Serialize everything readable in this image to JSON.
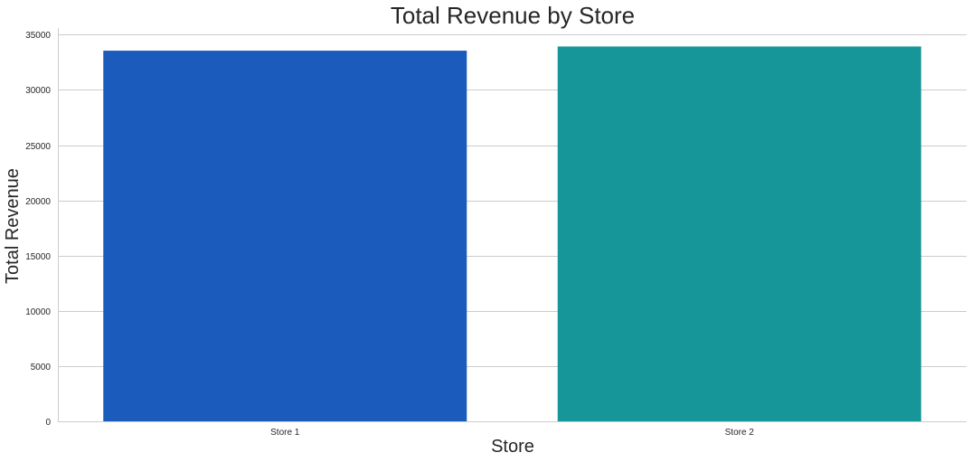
{
  "chart_data": {
    "type": "bar",
    "title": "Total Revenue by Store",
    "xlabel": "Store",
    "ylabel": "Total Revenue",
    "categories": [
      "Store 1",
      "Store 2"
    ],
    "values": [
      33550,
      33930
    ],
    "colors": [
      "#1b5bbb",
      "#17969a"
    ],
    "ylim": [
      0,
      35600
    ],
    "yticks": [
      0,
      5000,
      10000,
      15000,
      20000,
      25000,
      30000,
      35000
    ],
    "grid": "horizontal"
  }
}
